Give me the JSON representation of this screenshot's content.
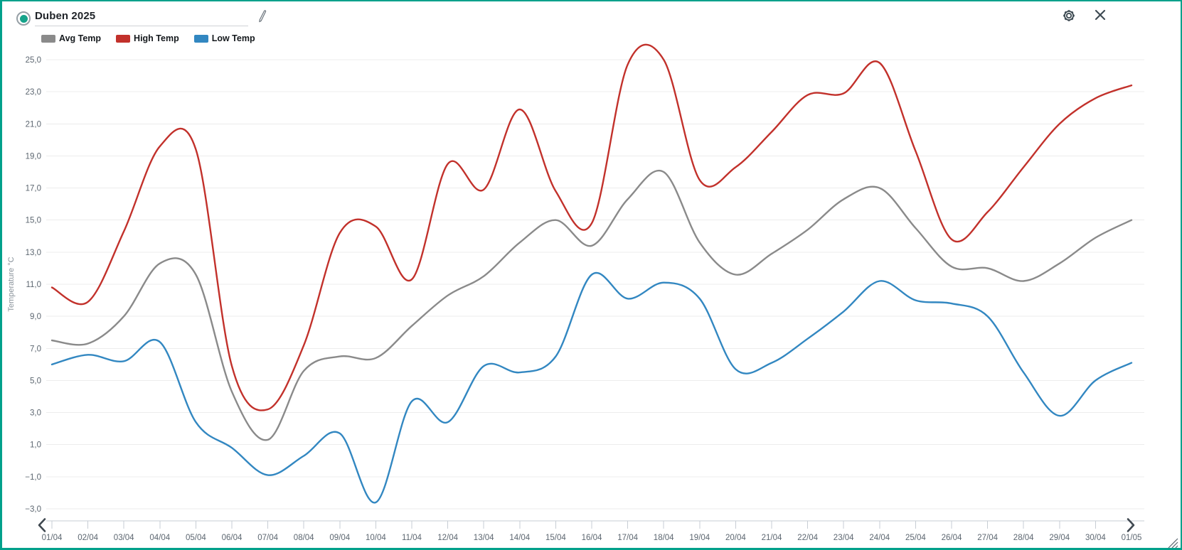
{
  "header": {
    "title": "Duben 2025",
    "radio_selected": true,
    "icons": [
      "edit-pencil-icon",
      "gear-icon",
      "close-icon"
    ]
  },
  "colors": {
    "accent_teal": "#00a18b",
    "radio_dot": "#16a38a",
    "avg_series": "#8a8a8a",
    "high_series": "#c2312b",
    "low_series": "#3287c1",
    "gridline": "#ececec",
    "axis": "#c7cdd4",
    "tick_text": "#5c6670",
    "icon_dark": "#3d4a52"
  },
  "chart_data": {
    "type": "line",
    "title": "Duben 2025",
    "xlabel": "",
    "ylabel": "Temperature °C",
    "ylim": [
      -3,
      25
    ],
    "ytick_step": 2,
    "grid": true,
    "legend_position": "top-left",
    "ytick_labels": [
      "25,0",
      "23,0",
      "21,0",
      "19,0",
      "17,0",
      "15,0",
      "13,0",
      "11,0",
      "9,0",
      "7,0",
      "5,0",
      "3,0",
      "1,0",
      "−1,0",
      "−3,0"
    ],
    "categories": [
      "01/04",
      "02/04",
      "03/04",
      "04/04",
      "05/04",
      "06/04",
      "07/04",
      "08/04",
      "09/04",
      "10/04",
      "11/04",
      "12/04",
      "13/04",
      "14/04",
      "15/04",
      "16/04",
      "17/04",
      "18/04",
      "19/04",
      "20/04",
      "21/04",
      "22/04",
      "23/04",
      "24/04",
      "25/04",
      "26/04",
      "27/04",
      "28/04",
      "29/04",
      "30/04",
      "01/05"
    ],
    "series": [
      {
        "name": "Avg Temp",
        "color": "#8a8a8a",
        "values": [
          7.5,
          7.3,
          9.0,
          12.3,
          11.6,
          4.3,
          1.3,
          5.6,
          6.5,
          6.4,
          8.4,
          10.3,
          11.5,
          13.6,
          15.0,
          13.4,
          16.3,
          18.0,
          13.6,
          11.6,
          12.9,
          14.4,
          16.3,
          17.0,
          14.5,
          12.1,
          12.0,
          11.2,
          12.3,
          13.9,
          15.0
        ]
      },
      {
        "name": "High Temp",
        "color": "#c2312b",
        "values": [
          10.8,
          9.9,
          14.3,
          19.6,
          19.4,
          5.9,
          3.2,
          7.2,
          14.2,
          14.6,
          11.3,
          18.5,
          16.9,
          21.9,
          16.8,
          14.8,
          24.7,
          25.0,
          17.5,
          18.3,
          20.5,
          22.8,
          22.9,
          24.8,
          19.3,
          13.8,
          15.5,
          18.3,
          21.0,
          22.6,
          23.4
        ]
      },
      {
        "name": "Low Temp",
        "color": "#3287c1",
        "values": [
          6.0,
          6.6,
          6.2,
          7.4,
          2.4,
          0.8,
          -0.9,
          0.3,
          1.7,
          -2.6,
          3.7,
          2.4,
          5.9,
          5.5,
          6.5,
          11.6,
          10.1,
          11.1,
          10.1,
          5.7,
          6.1,
          7.6,
          9.3,
          11.2,
          10.0,
          9.8,
          9.0,
          5.5,
          2.8,
          5.0,
          6.1
        ]
      }
    ]
  },
  "nav": {
    "scroll_left": "chevron-left",
    "scroll_right": "chevron-right",
    "resize_handle": "drag-resize"
  }
}
